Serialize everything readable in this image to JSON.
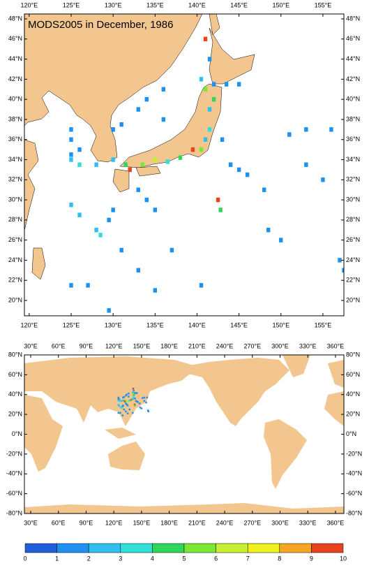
{
  "title": "MODS2005 in December, 1986",
  "regional_map": {
    "xlim": [
      119.43,
      157.5
    ],
    "ylim": [
      18.47,
      48.49
    ],
    "xticks": [
      {
        "value": 120,
        "label": "120°E"
      },
      {
        "value": 125,
        "label": "125°E"
      },
      {
        "value": 130,
        "label": "130°E"
      },
      {
        "value": 135,
        "label": "135°E"
      },
      {
        "value": 140,
        "label": "140°E"
      },
      {
        "value": 145,
        "label": "145°E"
      },
      {
        "value": 150,
        "label": "150°E"
      },
      {
        "value": 155,
        "label": "155°E"
      }
    ],
    "yticks": [
      {
        "value": 20,
        "label": "20°N"
      },
      {
        "value": 22,
        "label": "22°N"
      },
      {
        "value": 24,
        "label": "24°N"
      },
      {
        "value": 26,
        "label": "26°N"
      },
      {
        "value": 28,
        "label": "28°N"
      },
      {
        "value": 30,
        "label": "30°N"
      },
      {
        "value": 32,
        "label": "32°N"
      },
      {
        "value": 34,
        "label": "34°N"
      },
      {
        "value": 36,
        "label": "36°N"
      },
      {
        "value": 38,
        "label": "38°N"
      },
      {
        "value": 40,
        "label": "40°N"
      },
      {
        "value": 42,
        "label": "42°N"
      },
      {
        "value": 44,
        "label": "44°N"
      },
      {
        "value": 46,
        "label": "46°N"
      },
      {
        "value": 48,
        "label": "48°N"
      }
    ]
  },
  "global_map": {
    "xlim": [
      23.2,
      369.1
    ],
    "ylim": [
      -80,
      80
    ],
    "xticks": [
      {
        "value": 30,
        "label": "30°E"
      },
      {
        "value": 60,
        "label": "60°E"
      },
      {
        "value": 90,
        "label": "90°E"
      },
      {
        "value": 120,
        "label": "120°E"
      },
      {
        "value": 150,
        "label": "150°E"
      },
      {
        "value": 180,
        "label": "180°E"
      },
      {
        "value": 210,
        "label": "210°E"
      },
      {
        "value": 240,
        "label": "240°E"
      },
      {
        "value": 270,
        "label": "270°E"
      },
      {
        "value": 300,
        "label": "300°E"
      },
      {
        "value": 330,
        "label": "330°E"
      },
      {
        "value": 360,
        "label": "360°E"
      }
    ],
    "yticks": [
      {
        "value": 80,
        "label": "80°N"
      },
      {
        "value": 60,
        "label": "60°N"
      },
      {
        "value": 40,
        "label": "40°N"
      },
      {
        "value": 20,
        "label": "20°N"
      },
      {
        "value": 0,
        "label": "0°N"
      },
      {
        "value": -20,
        "label": "-20°N"
      },
      {
        "value": -40,
        "label": "-40°N"
      },
      {
        "value": -60,
        "label": "-60°N"
      },
      {
        "value": -80,
        "label": "-80°N"
      }
    ]
  },
  "observations": {
    "lon": [
      141,
      141.5,
      140.5,
      142,
      143.5,
      145,
      136,
      134,
      133,
      136,
      131,
      130,
      125,
      125,
      126,
      125,
      125,
      126,
      128,
      130,
      131.5,
      132,
      133.5,
      135,
      136.5,
      138,
      139.5,
      140.5,
      141,
      141.5,
      141.5,
      142,
      141,
      133,
      134,
      135,
      130,
      129.5,
      128,
      125,
      126,
      128.5,
      131,
      133,
      135,
      140.5,
      137,
      142.5,
      142.8,
      144,
      145,
      146,
      148,
      148.5,
      150,
      153,
      155,
      151,
      153,
      156,
      157,
      157.5,
      125,
      127,
      129.5,
      143
    ],
    "lat": [
      46,
      44,
      42,
      41.5,
      41.5,
      41.5,
      41,
      40,
      39,
      38,
      37.5,
      37,
      37,
      36,
      35,
      34.5,
      34,
      33.5,
      33.5,
      34,
      33.5,
      33,
      33.5,
      34,
      33.8,
      34.2,
      35,
      35,
      36,
      37,
      39,
      40,
      41,
      31,
      30,
      29,
      29,
      28,
      27,
      29.5,
      28.5,
      26.5,
      25,
      23,
      21,
      21.5,
      25,
      30,
      29,
      33.5,
      33,
      32.5,
      31,
      27,
      26,
      33.5,
      32,
      36.5,
      37,
      37,
      24,
      23,
      21.5,
      21.5,
      19,
      36
    ],
    "values": [
      9,
      1,
      2,
      1,
      1,
      1,
      1,
      1,
      1,
      1,
      1,
      1,
      1,
      1,
      1,
      1,
      2,
      3,
      2,
      2,
      4,
      9,
      5,
      6,
      3,
      4,
      9,
      5,
      2,
      3,
      2,
      4,
      5,
      1,
      1,
      1,
      1,
      1,
      2,
      2,
      2,
      3,
      1,
      1,
      1,
      1,
      1,
      9,
      4,
      1,
      1,
      1,
      1,
      1,
      1,
      1,
      1,
      1,
      1,
      1,
      1,
      1,
      1,
      1,
      1,
      1
    ]
  },
  "colorbar": {
    "levels": [
      0,
      1,
      2,
      3,
      4,
      5,
      6,
      7,
      8,
      9,
      10
    ],
    "colors": [
      "#1f5fd8",
      "#1e90f0",
      "#2fc0f0",
      "#30e0d8",
      "#2ed65a",
      "#7ae830",
      "#c8f030",
      "#f0f020",
      "#f5a623",
      "#e8421e"
    ]
  }
}
